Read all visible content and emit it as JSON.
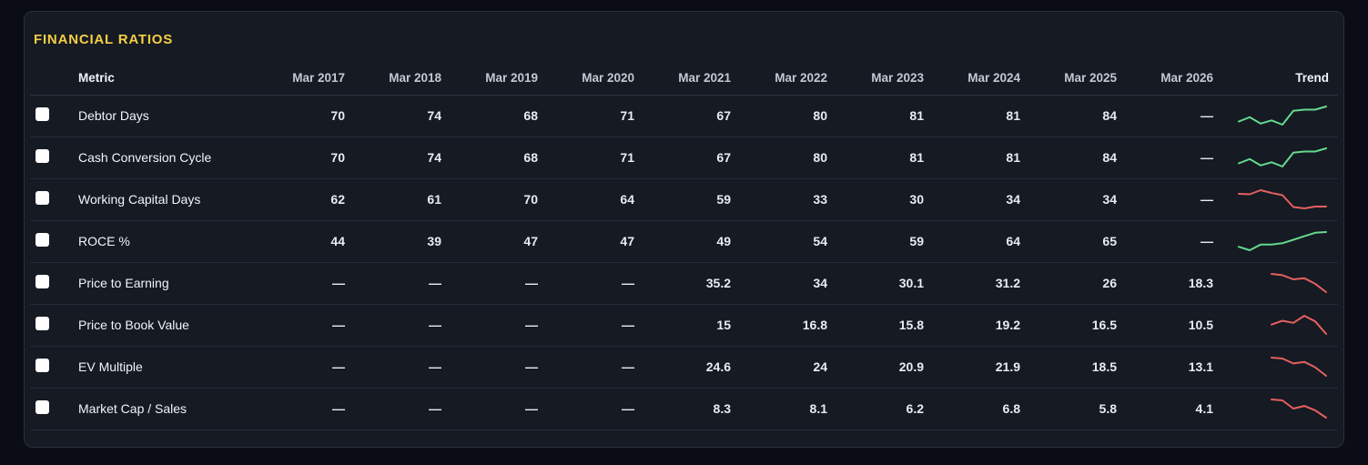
{
  "title": "FINANCIAL RATIOS",
  "colors": {
    "accent_title": "#f5ce42",
    "trend_up": "#65d98d",
    "trend_down": "#e5605f"
  },
  "table": {
    "metric_header": "Metric",
    "trend_header": "Trend",
    "year_headers": [
      "Mar 2017",
      "Mar 2018",
      "Mar 2019",
      "Mar 2020",
      "Mar 2021",
      "Mar 2022",
      "Mar 2023",
      "Mar 2024",
      "Mar 2025",
      "Mar 2026"
    ],
    "rows": [
      {
        "metric": "Debtor Days",
        "values": [
          "70",
          "74",
          "68",
          "71",
          "67",
          "80",
          "81",
          "81",
          "84",
          "—"
        ],
        "trend": "up"
      },
      {
        "metric": "Cash Conversion Cycle",
        "values": [
          "70",
          "74",
          "68",
          "71",
          "67",
          "80",
          "81",
          "81",
          "84",
          "—"
        ],
        "trend": "up"
      },
      {
        "metric": "Working Capital Days",
        "values": [
          "62",
          "61",
          "70",
          "64",
          "59",
          "33",
          "30",
          "34",
          "34",
          "—"
        ],
        "trend": "down"
      },
      {
        "metric": "ROCE %",
        "values": [
          "44",
          "39",
          "47",
          "47",
          "49",
          "54",
          "59",
          "64",
          "65",
          "—"
        ],
        "trend": "up"
      },
      {
        "metric": "Price to Earning",
        "values": [
          "—",
          "—",
          "—",
          "—",
          "35.2",
          "34",
          "30.1",
          "31.2",
          "26",
          "18.3"
        ],
        "trend": "down"
      },
      {
        "metric": "Price to Book Value",
        "values": [
          "—",
          "—",
          "—",
          "—",
          "15",
          "16.8",
          "15.8",
          "19.2",
          "16.5",
          "10.5"
        ],
        "trend": "down"
      },
      {
        "metric": "EV Multiple",
        "values": [
          "—",
          "—",
          "—",
          "—",
          "24.6",
          "24",
          "20.9",
          "21.9",
          "18.5",
          "13.1"
        ],
        "trend": "down"
      },
      {
        "metric": "Market Cap / Sales",
        "values": [
          "—",
          "—",
          "—",
          "—",
          "8.3",
          "8.1",
          "6.2",
          "6.8",
          "5.8",
          "4.1"
        ],
        "trend": "down"
      }
    ]
  }
}
